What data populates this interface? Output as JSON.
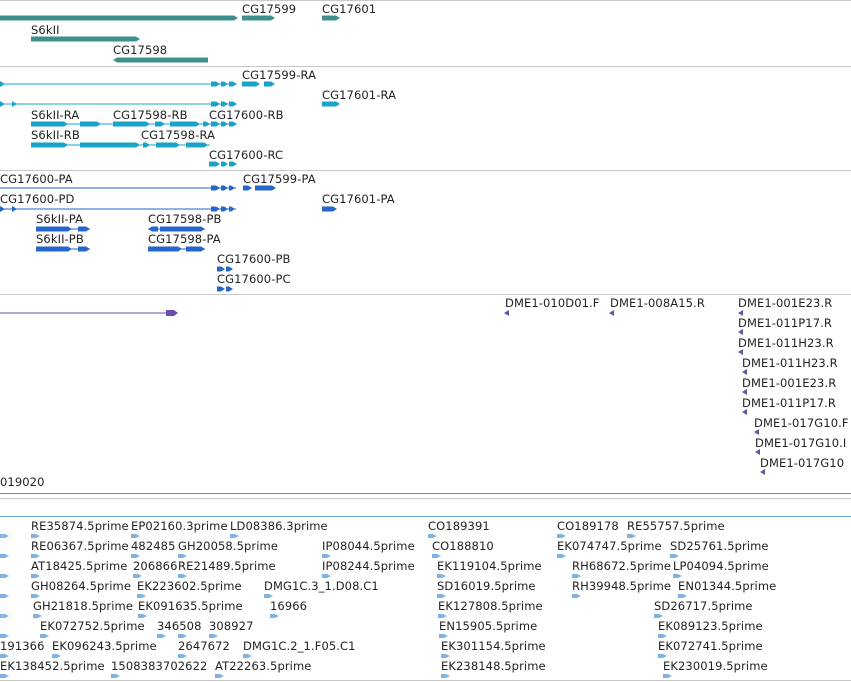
{
  "colors": {
    "gene": "#3f8f8c",
    "transcript": "#1aa3c8",
    "protein": "#2566c9",
    "clone": "#6a4fa8",
    "est": "#7fb4e2",
    "separator": "#c8c8c8"
  },
  "gene_track": {
    "labels": [
      "CG17599",
      "CG17601",
      "S6kII",
      "CG17598"
    ]
  },
  "transcript_track": {
    "labels": [
      "CG17599-RA",
      "CG17601-RA",
      "S6kII-RA",
      "CG17598-RB",
      "CG17600-RB",
      "S6kII-RB",
      "CG17598-RA",
      "CG17600-RC"
    ]
  },
  "protein_track": {
    "labels": [
      "CG17600-PA",
      "CG17599-PA",
      "CG17600-PD",
      "CG17601-PA",
      "S6kII-PA",
      "CG17598-PB",
      "S6kII-PB",
      "CG17598-PA",
      "CG17600-PB",
      "CG17600-PC"
    ]
  },
  "clone_track": {
    "labels": [
      "DME1-010D01.F",
      "DME1-008A15.R",
      "DME1-001E23.R",
      "DME1-011P17.R",
      "DME1-011H23.R",
      "DME1-011H23.R",
      "DME1-001E23.R",
      "DME1-011P17.R",
      "DME1-017G10.F",
      "DME1-017G10.I",
      "DME1-017G10",
      "019020"
    ]
  },
  "est_track": {
    "labels": [
      "RE35874.5prime",
      "EP02160.3prime",
      "LD08386.3prime",
      "CO189391",
      "CO189178",
      "RE55757.5prime",
      "RE06367.5prime",
      "482485",
      "GH20058.5prime",
      "IP08044.5prime",
      "CO188810",
      "EK074747.5prime",
      "SD25761.5prime",
      "AT18425.5prime",
      "206866",
      "RE21489.5prime",
      "IP08244.5prime",
      "EK119104.5prime",
      "RH68672.5prime",
      "LP04094.5prime",
      "GH08264.5prime",
      "EK223602.5prime",
      "DMG1C.3_1.D08.C1",
      "SD16019.5prime",
      "RH39948.5prime",
      "EN01344.5prime",
      "GH21818.5prime",
      "EK091635.5prime",
      "16966",
      "EK127808.5prime",
      "SD26717.5prime",
      "EK072752.5prime",
      "346508",
      "308927",
      "EN15905.5prime",
      "EK089123.5prime",
      "191366",
      "EK096243.5prime",
      "2647672",
      "DMG1C.2_1.F05.C1",
      "EK301154.5prime",
      "EK072741.5prime",
      "EK138452.5prime",
      "1508383702622",
      "AT22263.5prime",
      "EK238148.5prime",
      "EK230019.5prime"
    ]
  }
}
